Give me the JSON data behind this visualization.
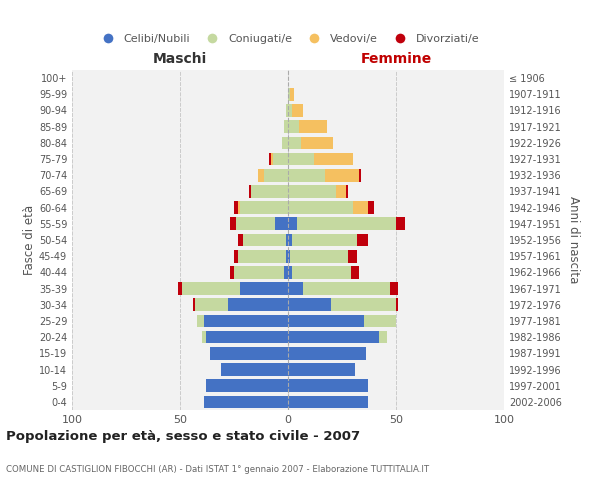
{
  "age_groups": [
    "0-4",
    "5-9",
    "10-14",
    "15-19",
    "20-24",
    "25-29",
    "30-34",
    "35-39",
    "40-44",
    "45-49",
    "50-54",
    "55-59",
    "60-64",
    "65-69",
    "70-74",
    "75-79",
    "80-84",
    "85-89",
    "90-94",
    "95-99",
    "100+"
  ],
  "birth_years": [
    "2002-2006",
    "1997-2001",
    "1992-1996",
    "1987-1991",
    "1982-1986",
    "1977-1981",
    "1972-1976",
    "1967-1971",
    "1962-1966",
    "1957-1961",
    "1952-1956",
    "1947-1951",
    "1942-1946",
    "1937-1941",
    "1932-1936",
    "1927-1931",
    "1922-1926",
    "1917-1921",
    "1912-1916",
    "1907-1911",
    "≤ 1906"
  ],
  "maschi": {
    "celibi": [
      39,
      38,
      31,
      36,
      38,
      39,
      28,
      22,
      2,
      1,
      1,
      6,
      0,
      0,
      0,
      0,
      0,
      0,
      0,
      0,
      0
    ],
    "coniugati": [
      0,
      0,
      0,
      0,
      2,
      3,
      15,
      27,
      23,
      22,
      20,
      18,
      22,
      17,
      11,
      7,
      3,
      2,
      1,
      0,
      0
    ],
    "vedovi": [
      0,
      0,
      0,
      0,
      0,
      0,
      0,
      0,
      0,
      0,
      0,
      0,
      1,
      0,
      3,
      1,
      0,
      0,
      0,
      0,
      0
    ],
    "divorziati": [
      0,
      0,
      0,
      0,
      0,
      0,
      1,
      2,
      2,
      2,
      2,
      3,
      2,
      1,
      0,
      1,
      0,
      0,
      0,
      0,
      0
    ]
  },
  "femmine": {
    "nubili": [
      37,
      37,
      31,
      36,
      42,
      35,
      20,
      7,
      2,
      1,
      2,
      4,
      0,
      0,
      0,
      0,
      0,
      0,
      0,
      0,
      0
    ],
    "coniugate": [
      0,
      0,
      0,
      0,
      4,
      15,
      30,
      40,
      27,
      27,
      30,
      46,
      30,
      22,
      17,
      12,
      6,
      5,
      2,
      1,
      0
    ],
    "vedove": [
      0,
      0,
      0,
      0,
      0,
      0,
      0,
      0,
      0,
      0,
      0,
      0,
      7,
      5,
      16,
      18,
      15,
      13,
      5,
      2,
      0
    ],
    "divorziate": [
      0,
      0,
      0,
      0,
      0,
      0,
      1,
      4,
      4,
      4,
      5,
      4,
      3,
      1,
      1,
      0,
      0,
      0,
      0,
      0,
      0
    ]
  },
  "colors": {
    "celibi_nubili": "#4472C4",
    "coniugati": "#C5D9A0",
    "vedovi": "#F5C060",
    "divorziati": "#C0000C"
  },
  "xlim": 100,
  "title": "Popolazione per età, sesso e stato civile - 2007",
  "subtitle": "COMUNE DI CASTIGLION FIBOCCHI (AR) - Dati ISTAT 1° gennaio 2007 - Elaborazione TUTTITALIA.IT",
  "xlabel_left": "Maschi",
  "xlabel_right": "Femmine",
  "ylabel_left": "Fasce di età",
  "ylabel_right": "Anni di nascita",
  "legend_labels": [
    "Celibi/Nubili",
    "Coniugati/e",
    "Vedovi/e",
    "Divorziati/e"
  ],
  "bg_color": "#FFFFFF",
  "plot_bg_color": "#F2F2F2"
}
